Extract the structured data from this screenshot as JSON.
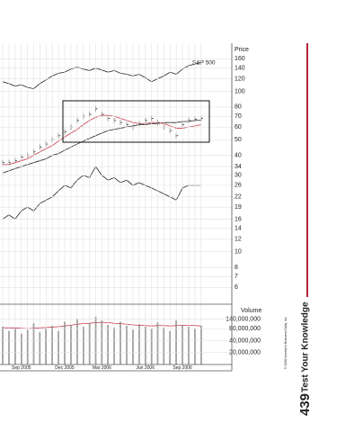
{
  "chart_data": {
    "type": "stock",
    "price_label": "Price",
    "volume_label": "Volume",
    "log_y": true,
    "grid": true,
    "categories": [
      null,
      null,
      null,
      "Sep 2005",
      null,
      null,
      null,
      null,
      null,
      null,
      "Dec 2005",
      null,
      null,
      null,
      null,
      null,
      "Mar 2006",
      null,
      null,
      null,
      null,
      null,
      null,
      "Jun 2006",
      null,
      null,
      null,
      null,
      null,
      "Sep 2006",
      null,
      null,
      null
    ],
    "ylim": [
      4.9,
      200
    ],
    "yticks": [
      160,
      140,
      120,
      100,
      80,
      70,
      60,
      50,
      40,
      34,
      30,
      26,
      22,
      19,
      16,
      14,
      12,
      10,
      8,
      7,
      6
    ],
    "series": [
      {
        "role": "price",
        "color": "#222222",
        "values": [
          36,
          36,
          37,
          39,
          40,
          42,
          45,
          47,
          50,
          53,
          56,
          60,
          66,
          70,
          72,
          78,
          72,
          68,
          66,
          64,
          62,
          60,
          63,
          66,
          68,
          64,
          60,
          57,
          53,
          62,
          66,
          67,
          68
        ]
      },
      {
        "role": "ma",
        "color": "#c8384e",
        "values": [
          35,
          35,
          36,
          37,
          38,
          40,
          42,
          44,
          46,
          49,
          52,
          55,
          58,
          62,
          66,
          69,
          71,
          71,
          70,
          68,
          66,
          64,
          63,
          63,
          64,
          64,
          63,
          61,
          59,
          59,
          60,
          61,
          62
        ]
      },
      {
        "role": "ma",
        "color": "#222222",
        "values": [
          31,
          32,
          33,
          34,
          35,
          36,
          37,
          38,
          40,
          41,
          43,
          45,
          47,
          49,
          51,
          53,
          55,
          57,
          58,
          59,
          60,
          61,
          62,
          62,
          63,
          63,
          64,
          64,
          64,
          65,
          65,
          66,
          66
        ]
      },
      {
        "role": "line",
        "name": "S&P 500",
        "color": "#222222",
        "values": [
          115,
          112,
          108,
          110,
          106,
          104,
          112,
          118,
          125,
          130,
          132,
          138,
          142,
          138,
          135,
          140,
          136,
          132,
          135,
          130,
          128,
          125,
          128,
          122,
          115,
          120,
          125,
          132,
          128,
          138,
          145,
          148,
          152
        ]
      },
      {
        "role": "line",
        "color": "#222222",
        "values": [
          16,
          17,
          16,
          18,
          19,
          18,
          20,
          21,
          22,
          24,
          26,
          25,
          28,
          30,
          29,
          34,
          30,
          28,
          29,
          27,
          28,
          26,
          27,
          26,
          25,
          24,
          23,
          22,
          21,
          25,
          26,
          26,
          26
        ]
      }
    ],
    "volume": {
      "color": "#444444",
      "ma_color": "#c8384e",
      "ylim": [
        10000000,
        300000000
      ],
      "yticks": [
        {
          "value": 140000000,
          "label": "140,000,000"
        },
        {
          "value": 80000000,
          "label": "80,000,000"
        },
        {
          "value": 40000000,
          "label": "40,000,000"
        },
        {
          "value": 20000000,
          "label": "20,000,000"
        }
      ],
      "values": [
        90000000,
        70000000,
        85000000,
        60000000,
        75000000,
        110000000,
        65000000,
        80000000,
        95000000,
        70000000,
        120000000,
        100000000,
        140000000,
        90000000,
        110000000,
        160000000,
        130000000,
        100000000,
        85000000,
        120000000,
        95000000,
        75000000,
        105000000,
        90000000,
        80000000,
        115000000,
        85000000,
        70000000,
        130000000,
        100000000,
        90000000,
        80000000,
        95000000
      ],
      "ma": [
        85000000,
        84000000,
        84000000,
        82000000,
        80000000,
        82000000,
        84000000,
        86000000,
        88000000,
        90000000,
        94000000,
        98000000,
        104000000,
        108000000,
        110000000,
        114000000,
        116000000,
        114000000,
        110000000,
        108000000,
        104000000,
        100000000,
        98000000,
        96000000,
        94000000,
        96000000,
        96000000,
        94000000,
        96000000,
        98000000,
        98000000,
        96000000,
        94000000
      ]
    }
  },
  "page": {
    "section": "Test Your Knowledge",
    "number": "439",
    "copyright": "© 2006 Investor's Business Daily, Inc."
  }
}
